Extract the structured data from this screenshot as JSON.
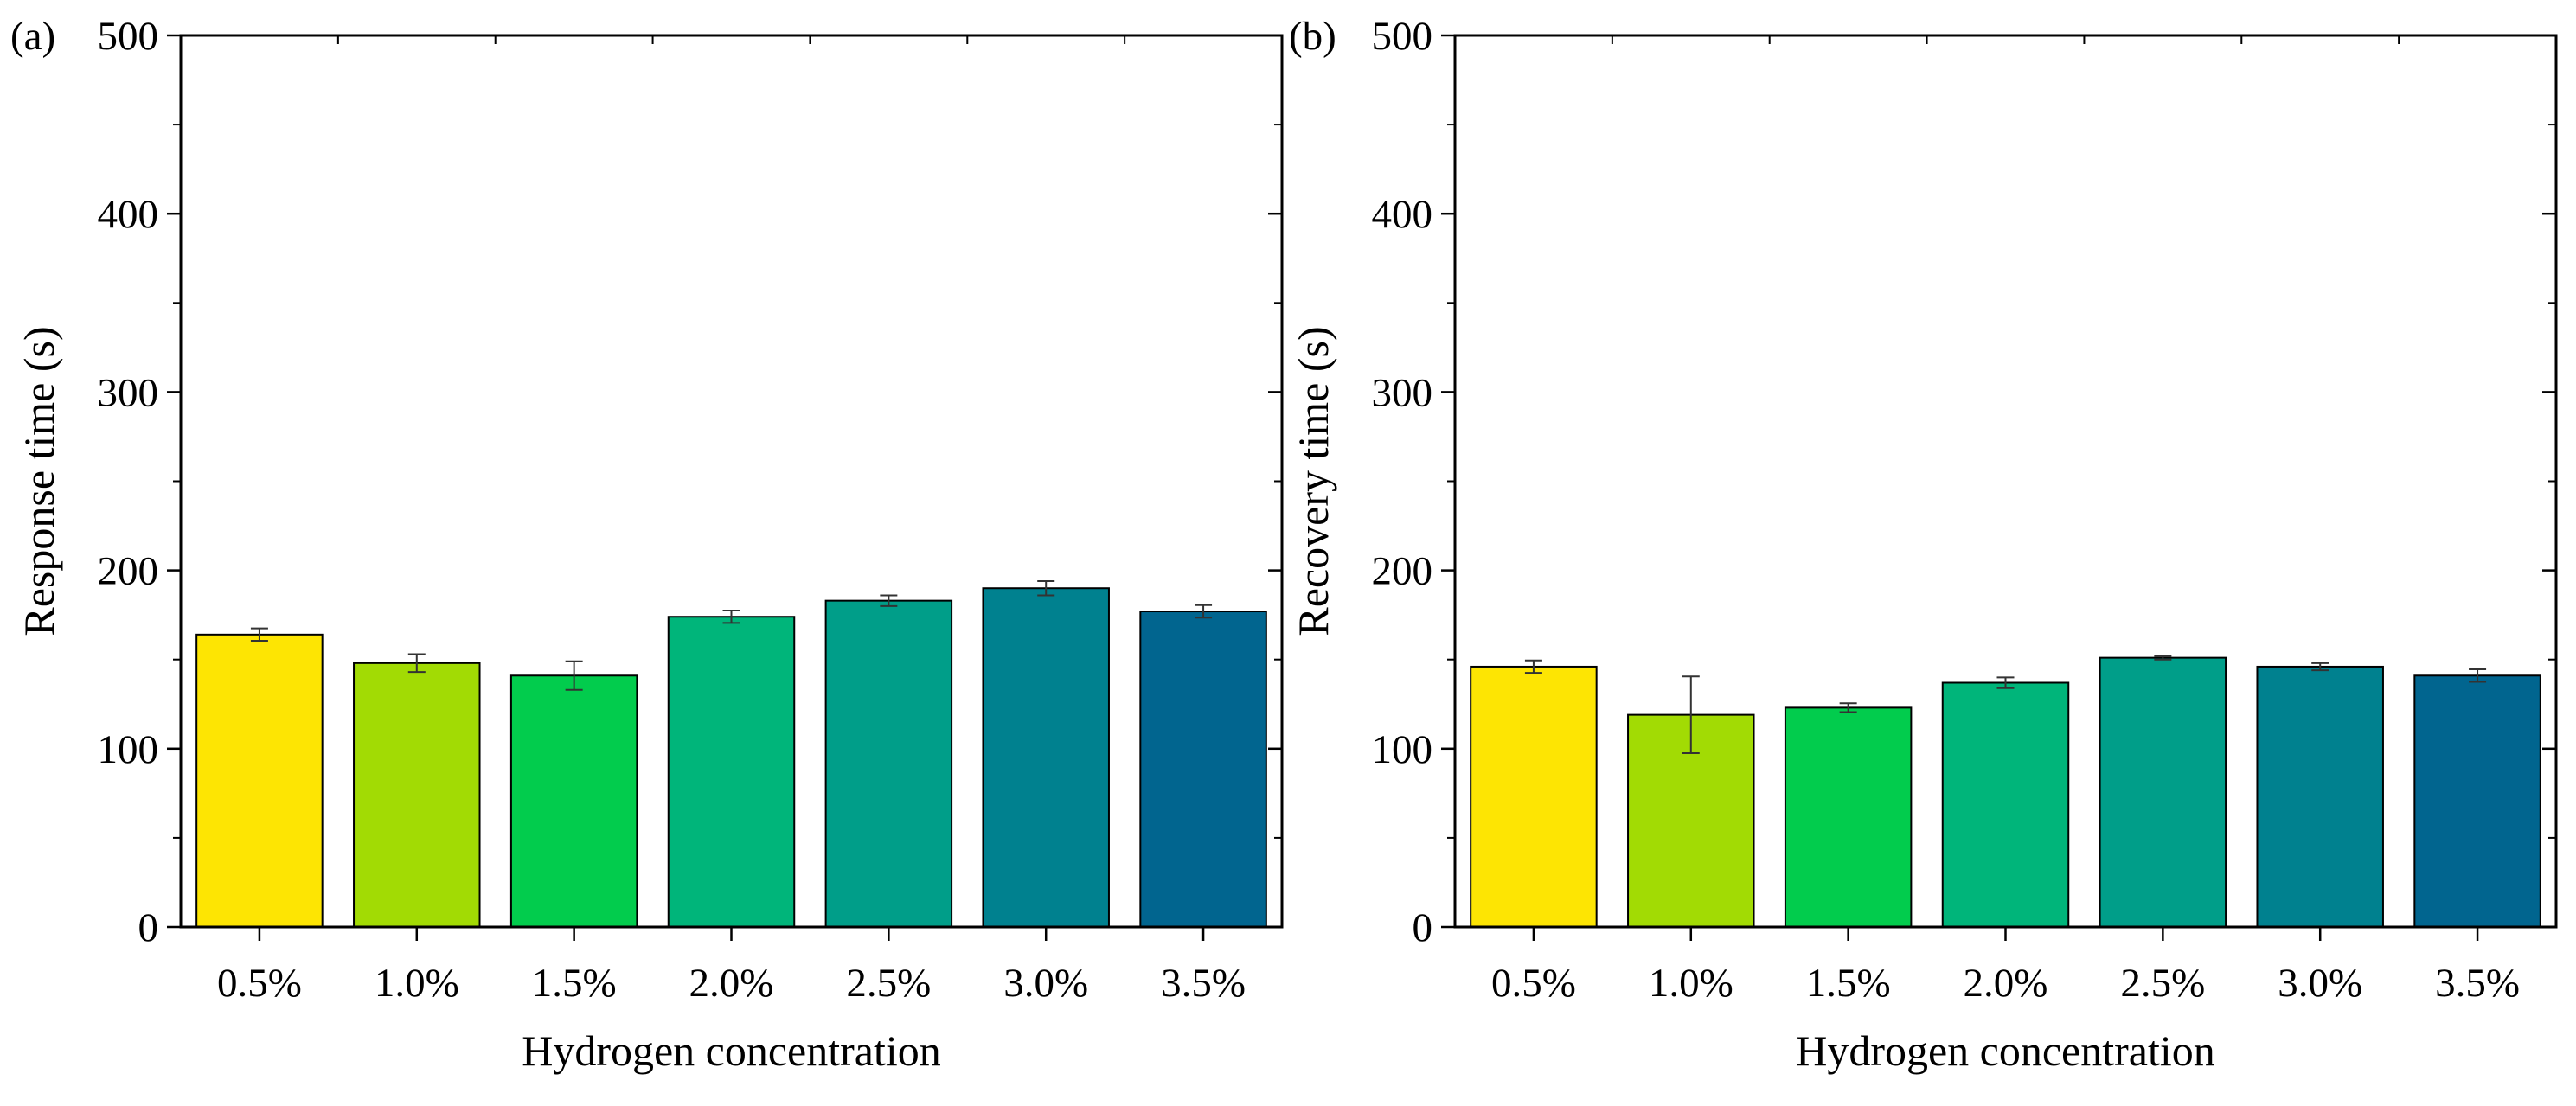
{
  "chart_data": [
    {
      "type": "bar",
      "panel_label": "(a)",
      "title": "",
      "xlabel": "Hydrogen concentration",
      "ylabel": "Response time (s)",
      "ylim": [
        0,
        500
      ],
      "yticks": [
        0,
        100,
        200,
        300,
        400,
        500
      ],
      "categories": [
        "0.5%",
        "1.0%",
        "1.5%",
        "2.0%",
        "2.5%",
        "3.0%",
        "3.5%"
      ],
      "values": [
        164,
        148,
        141,
        174,
        183,
        190,
        177
      ],
      "errors": [
        3.5,
        5,
        8,
        3.5,
        3,
        4,
        3.5
      ],
      "colors": [
        "#FDE503",
        "#A2DB04",
        "#02CC4D",
        "#00B57A",
        "#009E89",
        "#00818F",
        "#01658F"
      ],
      "grid": false,
      "legend": "none"
    },
    {
      "type": "bar",
      "panel_label": "(b)",
      "title": "",
      "xlabel": "Hydrogen concentration",
      "ylabel": "Recovery time (s)",
      "ylim": [
        0,
        500
      ],
      "yticks": [
        0,
        100,
        200,
        300,
        400,
        500
      ],
      "categories": [
        "0.5%",
        "1.0%",
        "1.5%",
        "2.0%",
        "2.5%",
        "3.0%",
        "3.5%"
      ],
      "values": [
        146,
        119,
        123,
        137,
        151,
        146,
        141
      ],
      "errors": [
        3.5,
        21.5,
        2.5,
        3,
        1,
        2,
        3.5
      ],
      "colors": [
        "#FDE503",
        "#A2DB04",
        "#02CC4D",
        "#00B57A",
        "#009E89",
        "#00818F",
        "#01658F"
      ],
      "grid": false,
      "legend": "none"
    }
  ]
}
